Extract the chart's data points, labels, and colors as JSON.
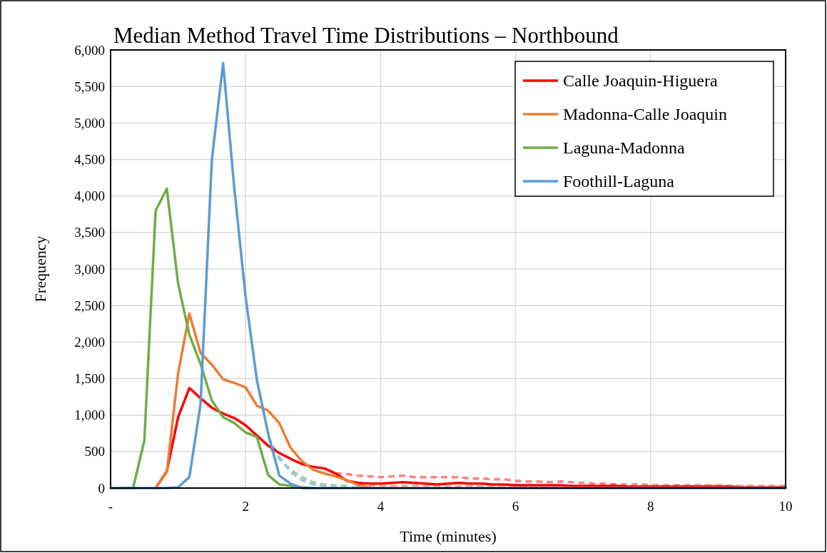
{
  "chart_data": {
    "type": "line",
    "title": "Median Method Travel Time Distributions – Northbound",
    "xlabel": "Time (minutes)",
    "ylabel": "Frequency",
    "x": [
      0,
      0.167,
      0.333,
      0.5,
      0.667,
      0.833,
      1,
      1.167,
      1.333,
      1.5,
      1.667,
      1.833,
      2,
      2.167,
      2.333,
      2.5,
      2.667,
      2.833,
      3,
      3.167,
      3.333,
      3.5,
      3.667,
      3.833,
      4,
      4.167,
      4.333,
      4.5,
      4.667,
      4.833,
      5,
      5.167,
      5.333,
      5.5,
      5.667,
      5.833,
      6,
      6.167,
      6.333,
      6.5,
      6.667,
      6.833,
      7,
      7.167,
      7.333,
      7.5,
      7.667,
      7.833,
      8,
      8.167,
      8.333,
      8.5,
      8.667,
      8.833,
      9,
      9.167,
      9.333,
      9.5,
      9.667,
      9.833,
      10
    ],
    "xlim": [
      0,
      10
    ],
    "xticks": [
      {
        "value": 0,
        "label": "-"
      },
      2,
      4,
      6,
      8,
      10
    ],
    "ylim": [
      0,
      6000
    ],
    "yticks": [
      0,
      500,
      {
        "value": 1000,
        "label": "1,000"
      },
      {
        "value": 1500,
        "label": "1,500"
      },
      {
        "value": 2000,
        "label": "2,000"
      },
      {
        "value": 2500,
        "label": "2,500"
      },
      {
        "value": 3000,
        "label": "3,000"
      },
      {
        "value": 3500,
        "label": "3,500"
      },
      {
        "value": 4000,
        "label": "4,000"
      },
      {
        "value": 4500,
        "label": "4,500"
      },
      {
        "value": 5000,
        "label": "5,000"
      },
      {
        "value": 5500,
        "label": "5,500"
      },
      {
        "value": 6000,
        "label": "6,000"
      }
    ],
    "grid": true,
    "legend": "top right",
    "marker": "none",
    "series": [
      {
        "color": "#ff8080",
        "line_style": "dashed",
        "values": [
          null,
          null,
          null,
          null,
          null,
          null,
          null,
          null,
          null,
          null,
          null,
          null,
          null,
          null,
          null,
          null,
          null,
          null,
          null,
          null,
          200,
          190,
          170,
          160,
          150,
          160,
          170,
          150,
          150,
          150,
          150,
          150,
          130,
          130,
          120,
          120,
          100,
          90,
          90,
          80,
          90,
          80,
          70,
          60,
          60,
          50,
          50,
          50,
          40,
          40,
          40,
          40,
          40,
          40,
          40,
          30,
          30,
          30,
          30,
          30,
          30
        ]
      },
      {
        "color": "#f4b183",
        "line_style": "dashed",
        "values": [
          null,
          null,
          null,
          null,
          null,
          null,
          null,
          null,
          null,
          null,
          null,
          null,
          null,
          null,
          null,
          null,
          null,
          null,
          null,
          null,
          null,
          null,
          40,
          30,
          30,
          30,
          30,
          30,
          30,
          20,
          20,
          20,
          30,
          20,
          20,
          20,
          20,
          20,
          20,
          20,
          20,
          20,
          30,
          30,
          20,
          20,
          20,
          20,
          30,
          30,
          20,
          20,
          30,
          30,
          30,
          30,
          30,
          20,
          30,
          30,
          30
        ]
      },
      {
        "color": "#a9d18e",
        "line_style": "dashed",
        "values": [
          null,
          null,
          null,
          null,
          null,
          null,
          null,
          null,
          null,
          null,
          null,
          null,
          760,
          720,
          580,
          400,
          250,
          150,
          80,
          50,
          40,
          30,
          null,
          null,
          null,
          null,
          null,
          null,
          null,
          null,
          null,
          null,
          null,
          null,
          null,
          null,
          null,
          null,
          null,
          null,
          null,
          null,
          null,
          null,
          null,
          null,
          null,
          null,
          null,
          null,
          null,
          null,
          null,
          null,
          null,
          null,
          null,
          null,
          null,
          null,
          null
        ]
      },
      {
        "color": "#9dc3e6",
        "line_style": "dashed",
        "values": [
          null,
          null,
          null,
          null,
          null,
          null,
          null,
          null,
          null,
          null,
          null,
          null,
          null,
          null,
          700,
          420,
          220,
          110,
          50,
          30,
          20,
          10,
          10,
          null,
          null,
          null,
          null,
          null,
          null,
          null,
          null,
          null,
          null,
          null,
          null,
          null,
          null,
          null,
          null,
          null,
          null,
          null,
          null,
          null,
          null,
          null,
          null,
          null,
          null,
          null,
          null,
          null,
          null,
          null,
          null,
          null,
          null,
          null,
          null,
          null,
          null
        ]
      },
      {
        "name": "Calle Joaquin-Higuera",
        "color": "#ff0000",
        "values": [
          null,
          null,
          null,
          null,
          0,
          230,
          970,
          1370,
          1230,
          1100,
          1020,
          960,
          860,
          720,
          580,
          480,
          400,
          330,
          290,
          270,
          200,
          100,
          70,
          60,
          60,
          70,
          80,
          70,
          60,
          50,
          60,
          70,
          60,
          60,
          50,
          50,
          40,
          40,
          40,
          40,
          40,
          30,
          30,
          30,
          30,
          30,
          20,
          20,
          20,
          20,
          20,
          20,
          20,
          20,
          20,
          20,
          10,
          10,
          10,
          10,
          10
        ]
      },
      {
        "name": "Madonna-Calle Joaquin",
        "color": "#ed7d31",
        "values": [
          null,
          null,
          null,
          null,
          0,
          220,
          1570,
          2390,
          1850,
          1690,
          1490,
          1440,
          1380,
          1130,
          1060,
          890,
          550,
          370,
          250,
          200,
          160,
          110,
          40,
          10,
          null,
          null,
          null,
          null,
          null,
          null,
          null,
          null,
          null,
          null,
          null,
          null,
          null,
          null,
          null,
          null,
          null,
          null,
          null,
          null,
          null,
          null,
          null,
          null,
          null,
          null,
          null,
          null,
          null,
          null,
          null,
          null,
          null,
          null,
          null,
          null,
          null
        ]
      },
      {
        "name": "Laguna-Madonna",
        "color": "#70ad47",
        "values": [
          0,
          0,
          0,
          650,
          3800,
          4100,
          2800,
          2100,
          1700,
          1200,
          970,
          890,
          760,
          700,
          180,
          50,
          30,
          10,
          0,
          null,
          null,
          null,
          null,
          null,
          null,
          null,
          null,
          null,
          null,
          null,
          null,
          null,
          null,
          null,
          null,
          null,
          null,
          null,
          null,
          null,
          null,
          null,
          null,
          null,
          null,
          null,
          null,
          null,
          null,
          null,
          null,
          null,
          null,
          null,
          null,
          null,
          null,
          null,
          null,
          null,
          null
        ]
      },
      {
        "name": "Foothill-Laguna",
        "color": "#5b9bd5",
        "values": [
          0,
          0,
          0,
          0,
          0,
          0,
          10,
          150,
          1150,
          4500,
          5820,
          4100,
          2620,
          1480,
          750,
          170,
          60,
          0,
          0,
          0,
          0,
          0,
          0,
          0,
          0,
          0,
          0,
          0,
          0,
          0,
          0,
          0,
          0,
          0,
          0,
          0,
          0,
          0,
          0,
          0,
          0,
          0,
          0,
          0,
          0,
          0,
          0,
          0,
          0,
          0,
          0,
          0,
          0,
          0,
          0,
          0,
          0,
          0,
          0,
          0,
          0
        ]
      }
    ]
  }
}
